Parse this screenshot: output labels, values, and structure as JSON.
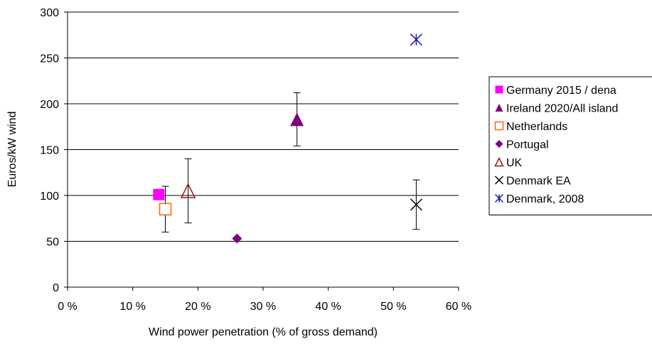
{
  "chart_data": {
    "type": "scatter",
    "title": "",
    "xlabel": "Wind power penetration (% of gross demand)",
    "ylabel": "Euros/kW wind",
    "xlim": [
      0,
      60
    ],
    "ylim": [
      0,
      300
    ],
    "x_ticks": [
      0,
      10,
      20,
      30,
      40,
      50,
      60
    ],
    "x_tick_labels": [
      "0 %",
      "10 %",
      "20 %",
      "30 %",
      "40 %",
      "50 %",
      "60 %"
    ],
    "y_ticks": [
      0,
      50,
      100,
      150,
      200,
      250,
      300
    ],
    "y_tick_labels": [
      "0",
      "50",
      "100",
      "150",
      "200",
      "250",
      "300"
    ],
    "grid": "horizontal",
    "legend_position": "right",
    "series": [
      {
        "name": "Germany 2015 / dena",
        "marker": "filled-square",
        "color": "#ff00ff",
        "points": [
          {
            "x": 14,
            "y": 101
          }
        ]
      },
      {
        "name": "Ireland 2020/All island",
        "marker": "filled-triangle",
        "color": "#800080",
        "points": [
          {
            "x": 35.2,
            "y": 183,
            "err_low": 154,
            "err_high": 212
          }
        ]
      },
      {
        "name": "Netherlands",
        "marker": "open-square",
        "color": "#ff6600",
        "points": [
          {
            "x": 15,
            "y": 85,
            "err_low": 60,
            "err_high": 110
          }
        ]
      },
      {
        "name": "Portugal",
        "marker": "filled-diamond",
        "color": "#800080",
        "points": [
          {
            "x": 26,
            "y": 53
          }
        ]
      },
      {
        "name": "UK",
        "marker": "open-triangle",
        "color": "#8b1a1a",
        "points": [
          {
            "x": 18.5,
            "y": 105,
            "err_low": 70,
            "err_high": 140
          }
        ]
      },
      {
        "name": "Denmark EA",
        "marker": "x-cross",
        "color": "#000000",
        "points": [
          {
            "x": 53.5,
            "y": 90,
            "err_low": 63,
            "err_high": 117
          }
        ]
      },
      {
        "name": "Denmark, 2008",
        "marker": "asterisk",
        "color": "#1a1aa6",
        "points": [
          {
            "x": 53.5,
            "y": 270
          }
        ]
      }
    ]
  }
}
